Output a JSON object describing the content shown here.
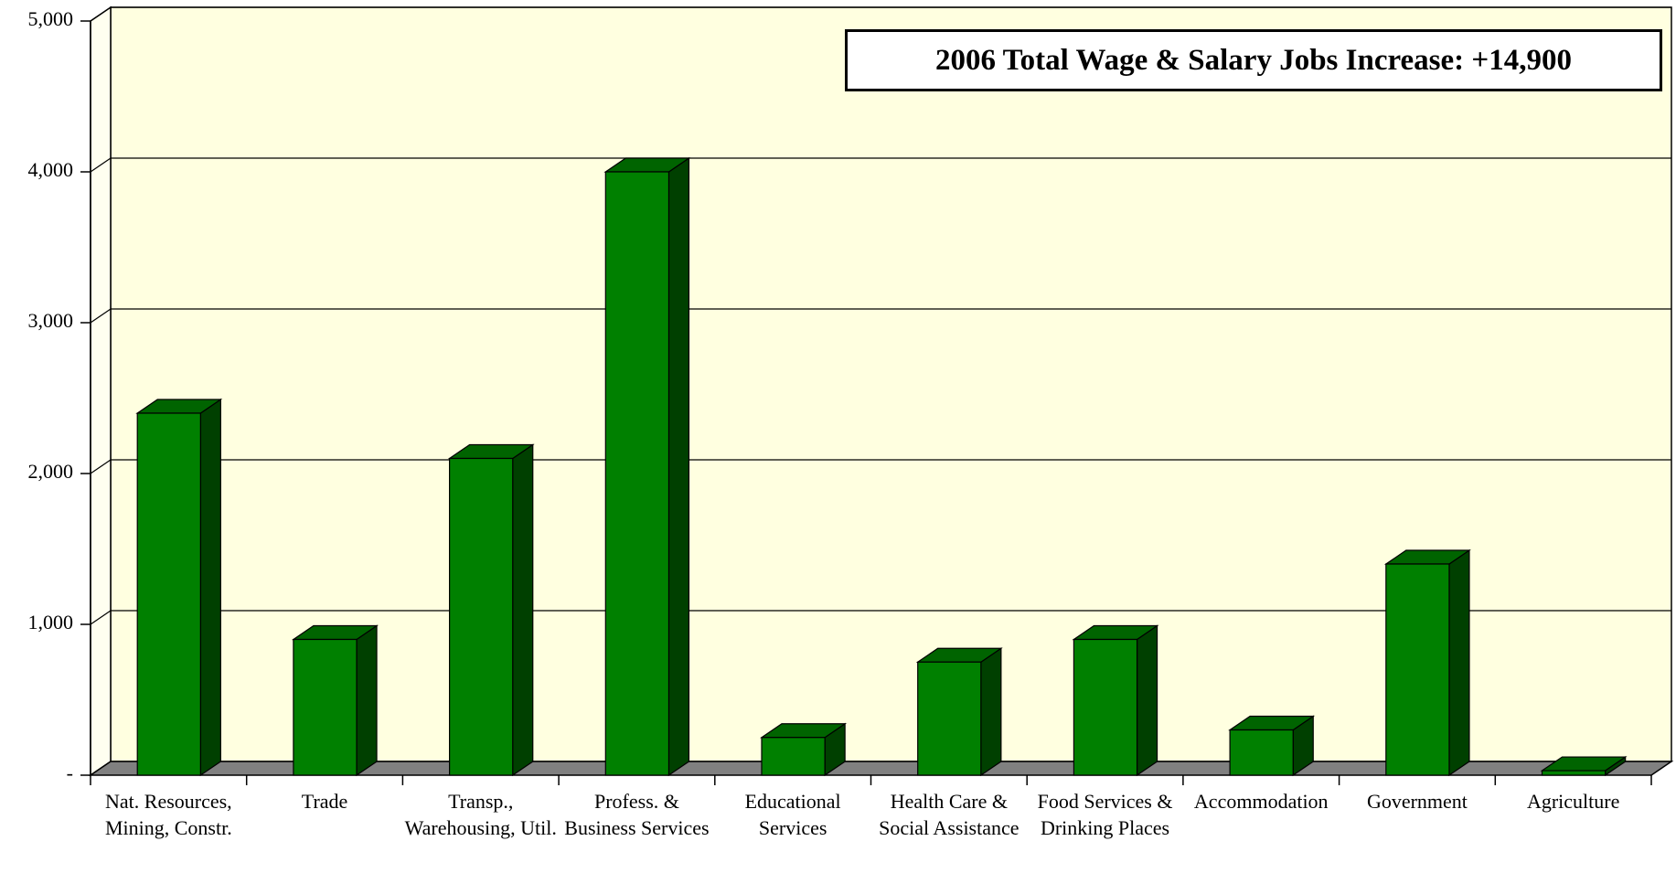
{
  "chart_data": {
    "type": "bar3d",
    "annotation": "2006 Total Wage & Salary Jobs Increase: +14,900",
    "categories": [
      "Nat. Resources, Mining, Constr.",
      "Trade",
      "Transp., Warehousing, Util.",
      "Profess. & Business Services",
      "Educational Services",
      "Health Care & Social Assistance",
      "Food Services & Drinking Places",
      "Accommodation",
      "Government",
      "Agriculture"
    ],
    "values": [
      2400,
      900,
      2100,
      4000,
      250,
      750,
      900,
      300,
      1400,
      30
    ],
    "color": "#008000",
    "ylim": [
      0,
      5000
    ],
    "yticks": [
      {
        "value": 0,
        "label": "-"
      },
      {
        "value": 1000,
        "label": "1,000"
      },
      {
        "value": 2000,
        "label": "2,000"
      },
      {
        "value": 3000,
        "label": "3,000"
      },
      {
        "value": 4000,
        "label": "4,000"
      },
      {
        "value": 5000,
        "label": "5,000"
      }
    ],
    "grid": true
  }
}
